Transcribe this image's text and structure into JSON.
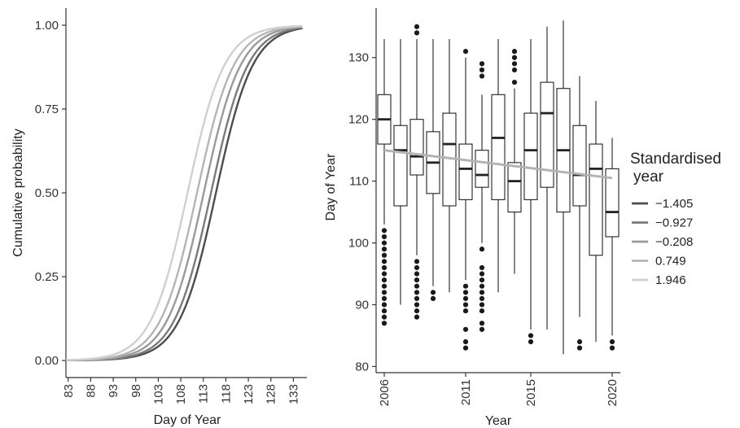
{
  "chart_data": [
    {
      "type": "line",
      "xlabel": "Day of Year",
      "ylabel": "Cumulative probability",
      "xlim": [
        82.5,
        136
      ],
      "ylim": [
        0,
        1
      ],
      "x_tick_labels": [
        "83",
        "88",
        "93",
        "98",
        "103",
        "108",
        "113",
        "118",
        "123",
        "128",
        "133"
      ],
      "y_tick_labels": [
        "0.00",
        "0.25",
        "0.50",
        "0.75",
        "1.00"
      ],
      "grid": false,
      "series": [
        {
          "name": "−1.405",
          "color": "#4d4d4d",
          "median_doy": 115.8,
          "sd_days": 6.6
        },
        {
          "name": "−0.927",
          "color": "#7a7a7a",
          "median_doy": 114.7,
          "sd_days": 6.6
        },
        {
          "name": "−0.208",
          "color": "#9a9a9a",
          "median_doy": 113.1,
          "sd_days": 6.6
        },
        {
          "name": "0.749",
          "color": "#b5b5b5",
          "median_doy": 111.6,
          "sd_days": 6.6
        },
        {
          "name": "1.946",
          "color": "#d0d0d0",
          "median_doy": 109.5,
          "sd_days": 6.6
        }
      ]
    },
    {
      "type": "box",
      "xlabel": "Year",
      "ylabel": "Day of Year",
      "xlim": [
        2005.5,
        2020.5
      ],
      "ylim": [
        79,
        138
      ],
      "x_tick_labels": [
        "2006",
        "2011",
        "2015",
        "2020"
      ],
      "x_tick_values": [
        2006,
        2011,
        2015,
        2020
      ],
      "y_tick_labels": [
        "80",
        "90",
        "100",
        "110",
        "120",
        "130"
      ],
      "y_tick_values": [
        80,
        90,
        100,
        110,
        120,
        130
      ],
      "grid": false,
      "boxes": [
        {
          "year": 2006,
          "lower_whisker": 103,
          "q1": 116,
          "median": 120,
          "q3": 124,
          "upper_whisker": 133,
          "outliers": [
            87,
            88,
            89,
            90,
            91,
            92,
            93,
            94,
            95,
            96,
            97,
            98,
            99,
            100,
            101,
            102
          ]
        },
        {
          "year": 2007,
          "lower_whisker": 90,
          "q1": 106,
          "median": 115,
          "q3": 119,
          "upper_whisker": 133,
          "outliers": []
        },
        {
          "year": 2008,
          "lower_whisker": 98,
          "q1": 111,
          "median": 114,
          "q3": 120,
          "upper_whisker": 133,
          "outliers": [
            88,
            89,
            90,
            91,
            92,
            93,
            94,
            95,
            96,
            97,
            134,
            135
          ]
        },
        {
          "year": 2009,
          "lower_whisker": 93,
          "q1": 108,
          "median": 113,
          "q3": 118,
          "upper_whisker": 133,
          "outliers": [
            91,
            92
          ]
        },
        {
          "year": 2010,
          "lower_whisker": 92,
          "q1": 106,
          "median": 116,
          "q3": 121,
          "upper_whisker": 133,
          "outliers": []
        },
        {
          "year": 2011,
          "lower_whisker": 94,
          "q1": 107,
          "median": 112,
          "q3": 116,
          "upper_whisker": 130,
          "outliers": [
            83,
            84,
            86,
            89,
            90,
            91,
            92,
            93,
            131
          ]
        },
        {
          "year": 2012,
          "lower_whisker": 100,
          "q1": 109,
          "median": 111,
          "q3": 115,
          "upper_whisker": 124,
          "outliers": [
            86,
            87,
            89,
            90,
            91,
            92,
            93,
            94,
            95,
            96,
            99,
            127,
            128,
            129
          ]
        },
        {
          "year": 2013,
          "lower_whisker": 92,
          "q1": 107,
          "median": 117,
          "q3": 124,
          "upper_whisker": 133,
          "outliers": []
        },
        {
          "year": 2014,
          "lower_whisker": 95,
          "q1": 105,
          "median": 110,
          "q3": 113,
          "upper_whisker": 125,
          "outliers": [
            126,
            128,
            129,
            130,
            131
          ]
        },
        {
          "year": 2015,
          "lower_whisker": 86,
          "q1": 107,
          "median": 115,
          "q3": 121,
          "upper_whisker": 133,
          "outliers": [
            84,
            85
          ]
        },
        {
          "year": 2016,
          "lower_whisker": 86,
          "q1": 109,
          "median": 121,
          "q3": 126,
          "upper_whisker": 135,
          "outliers": []
        },
        {
          "year": 2017,
          "lower_whisker": 82,
          "q1": 105,
          "median": 115,
          "q3": 125,
          "upper_whisker": 136,
          "outliers": []
        },
        {
          "year": 2018,
          "lower_whisker": 88,
          "q1": 106,
          "median": 111,
          "q3": 119,
          "upper_whisker": 127,
          "outliers": [
            83,
            84
          ]
        },
        {
          "year": 2019,
          "lower_whisker": 84,
          "q1": 98,
          "median": 112,
          "q3": 116,
          "upper_whisker": 123,
          "outliers": []
        },
        {
          "year": 2020,
          "lower_whisker": 85,
          "q1": 101,
          "median": 105,
          "q3": 112,
          "upper_whisker": 117,
          "outliers": [
            83,
            84
          ]
        }
      ],
      "trend_line": {
        "color": "#b3b3b3",
        "start_year": 2006,
        "start_value": 115,
        "end_year": 2020,
        "end_value": 110.5
      }
    }
  ],
  "legend": {
    "title_line1": "Standardised",
    "title_line2": "year",
    "placement": "right",
    "items": [
      {
        "label": "−1.405",
        "color": "#4d4d4d"
      },
      {
        "label": "−0.927",
        "color": "#7a7a7a"
      },
      {
        "label": "−0.208",
        "color": "#9a9a9a"
      },
      {
        "label": "0.749",
        "color": "#b5b5b5"
      },
      {
        "label": "1.946",
        "color": "#d0d0d0"
      }
    ]
  }
}
